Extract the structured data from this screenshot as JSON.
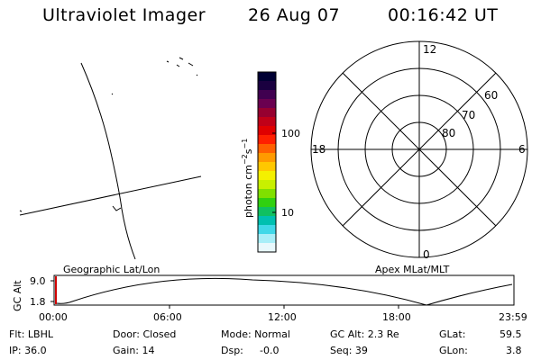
{
  "header": {
    "title": "Ultraviolet Imager",
    "date": "26 Aug 07",
    "time": "00:16:42 UT"
  },
  "colorbar": {
    "unit_prefix": "photon cm",
    "unit_exp1": "−2",
    "unit_mid": "s",
    "unit_exp2": "−1",
    "tick_high": "100",
    "tick_low": "10",
    "colors": [
      "#000033",
      "#1a0040",
      "#400050",
      "#6a0050",
      "#960030",
      "#c00018",
      "#e00000",
      "#ff2000",
      "#ff6000",
      "#ff9a00",
      "#ffc800",
      "#f4f000",
      "#c8f000",
      "#80e000",
      "#30d010",
      "#10c060",
      "#00c0b0",
      "#40d8e8",
      "#a8eef8",
      "#e8f8fc"
    ]
  },
  "polar": {
    "mlt_labels": {
      "top": "12",
      "left": "18",
      "right": "6",
      "bottom": "0"
    },
    "lat_labels": [
      "60",
      "70",
      "80"
    ]
  },
  "timeline": {
    "left_label": "Geographic Lat/Lon",
    "right_label": "Apex MLat/MLT",
    "ylabel": "GC Alt",
    "y_top": "9.0",
    "y_bottom": "1.8",
    "x_ticks": [
      "00:00",
      "06:00",
      "12:00",
      "18:00",
      "23:59"
    ]
  },
  "status": {
    "flt": "Flt: LBHL",
    "ip": "IP: 36.0",
    "door": "Door: Closed",
    "gain": "Gain: 14",
    "mode": "Mode: Normal",
    "dsp_label": "Dsp:",
    "dsp_value": "-0.0",
    "gcalt": "GC Alt: 2.3 Re",
    "seq": "Seq: 39",
    "glat_label": "GLat:",
    "glat_value": "59.5",
    "glon_label": "GLon:",
    "glon_value": "3.8"
  }
}
